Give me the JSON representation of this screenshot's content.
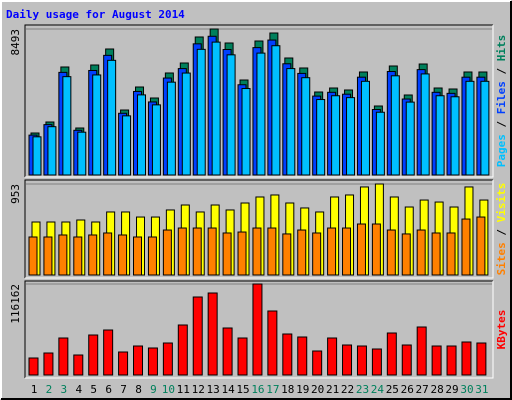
{
  "chart_data": [
    {
      "type": "bar",
      "title": "Daily usage for August 2014",
      "ylim": [
        0,
        8493
      ],
      "yticks": [
        8493
      ],
      "legend_separator": " / ",
      "series": [
        {
          "name": "Pages",
          "color": "#00c0ff",
          "values": [
            2220,
            2810,
            5720,
            2490,
            5820,
            6670,
            3440,
            4660,
            4080,
            5400,
            5930,
            7310,
            7730,
            6990,
            5030,
            7090,
            7520,
            6190,
            5660,
            4390,
            4610,
            4500,
            5450,
            3650,
            5770,
            4240,
            5880,
            4610,
            4550,
            5450,
            5450
          ]
        },
        {
          "name": "Files",
          "color": "#0040ff",
          "values": [
            2320,
            2930,
            5970,
            2600,
            6080,
            6960,
            3590,
            4860,
            4250,
            5640,
            6190,
            7630,
            8070,
            7300,
            5250,
            7410,
            7850,
            6470,
            5910,
            4590,
            4810,
            4700,
            5690,
            3810,
            6020,
            4420,
            6130,
            4810,
            4750,
            5690,
            5690
          ]
        },
        {
          "name": "Hits",
          "color": "#00805c",
          "values": [
            2443,
            3083,
            6283,
            2734,
            6399,
            7330,
            3781,
            5119,
            4479,
            5934,
            6515,
            8028,
            8493,
            7679,
            5526,
            7795,
            8260,
            6806,
            6225,
            4828,
            5061,
            4945,
            5992,
            4014,
            6341,
            4654,
            6457,
            5061,
            5003,
            5992,
            5992
          ]
        }
      ]
    },
    {
      "type": "bar",
      "ylim": [
        0,
        953
      ],
      "yticks": [
        953
      ],
      "legend_separator": " / ",
      "series": [
        {
          "name": "Sites",
          "color": "#ff8000",
          "values": [
            398,
            398,
            419,
            398,
            419,
            440,
            419,
            398,
            398,
            471,
            492,
            492,
            492,
            440,
            450,
            492,
            492,
            430,
            471,
            440,
            492,
            492,
            534,
            534,
            471,
            430,
            471,
            440,
            440,
            586,
            607
          ]
        },
        {
          "name": "Visits",
          "color": "#ffff00",
          "values": [
            555,
            555,
            555,
            576,
            555,
            660,
            660,
            607,
            607,
            681,
            733,
            660,
            733,
            681,
            754,
            817,
            838,
            754,
            702,
            660,
            817,
            838,
            922,
            953,
            817,
            712,
            785,
            764,
            712,
            922,
            785
          ]
        }
      ]
    },
    {
      "type": "bar",
      "ylim": [
        0,
        116162
      ],
      "yticks": [
        116162
      ],
      "categories": [
        "1",
        "2",
        "3",
        "4",
        "5",
        "6",
        "7",
        "8",
        "9",
        "10",
        "11",
        "12",
        "13",
        "14",
        "15",
        "16",
        "17",
        "18",
        "19",
        "20",
        "21",
        "22",
        "23",
        "24",
        "25",
        "26",
        "27",
        "28",
        "29",
        "30",
        "31"
      ],
      "category_label_colors": [
        "#000000",
        "#00805c",
        "#00805c",
        "#000000",
        "#000000",
        "#000000",
        "#000000",
        "#000000",
        "#00805c",
        "#00805c",
        "#000000",
        "#000000",
        "#000000",
        "#000000",
        "#000000",
        "#00805c",
        "#00805c",
        "#000000",
        "#000000",
        "#000000",
        "#000000",
        "#000000",
        "#00805c",
        "#00805c",
        "#000000",
        "#000000",
        "#000000",
        "#000000",
        "#000000",
        "#00805c",
        "#00805c"
      ],
      "series": [
        {
          "name": "KBytes",
          "color": "#ff0000",
          "values": [
            21700,
            28080,
            47230,
            25530,
            51060,
            57440,
            29360,
            37020,
            34470,
            40850,
            63830,
            99570,
            104670,
            60000,
            47230,
            116162,
            81700,
            52340,
            48510,
            30640,
            47230,
            38300,
            37020,
            33190,
            53610,
            38300,
            61270,
            37020,
            37020,
            42130,
            40850
          ]
        }
      ]
    }
  ]
}
